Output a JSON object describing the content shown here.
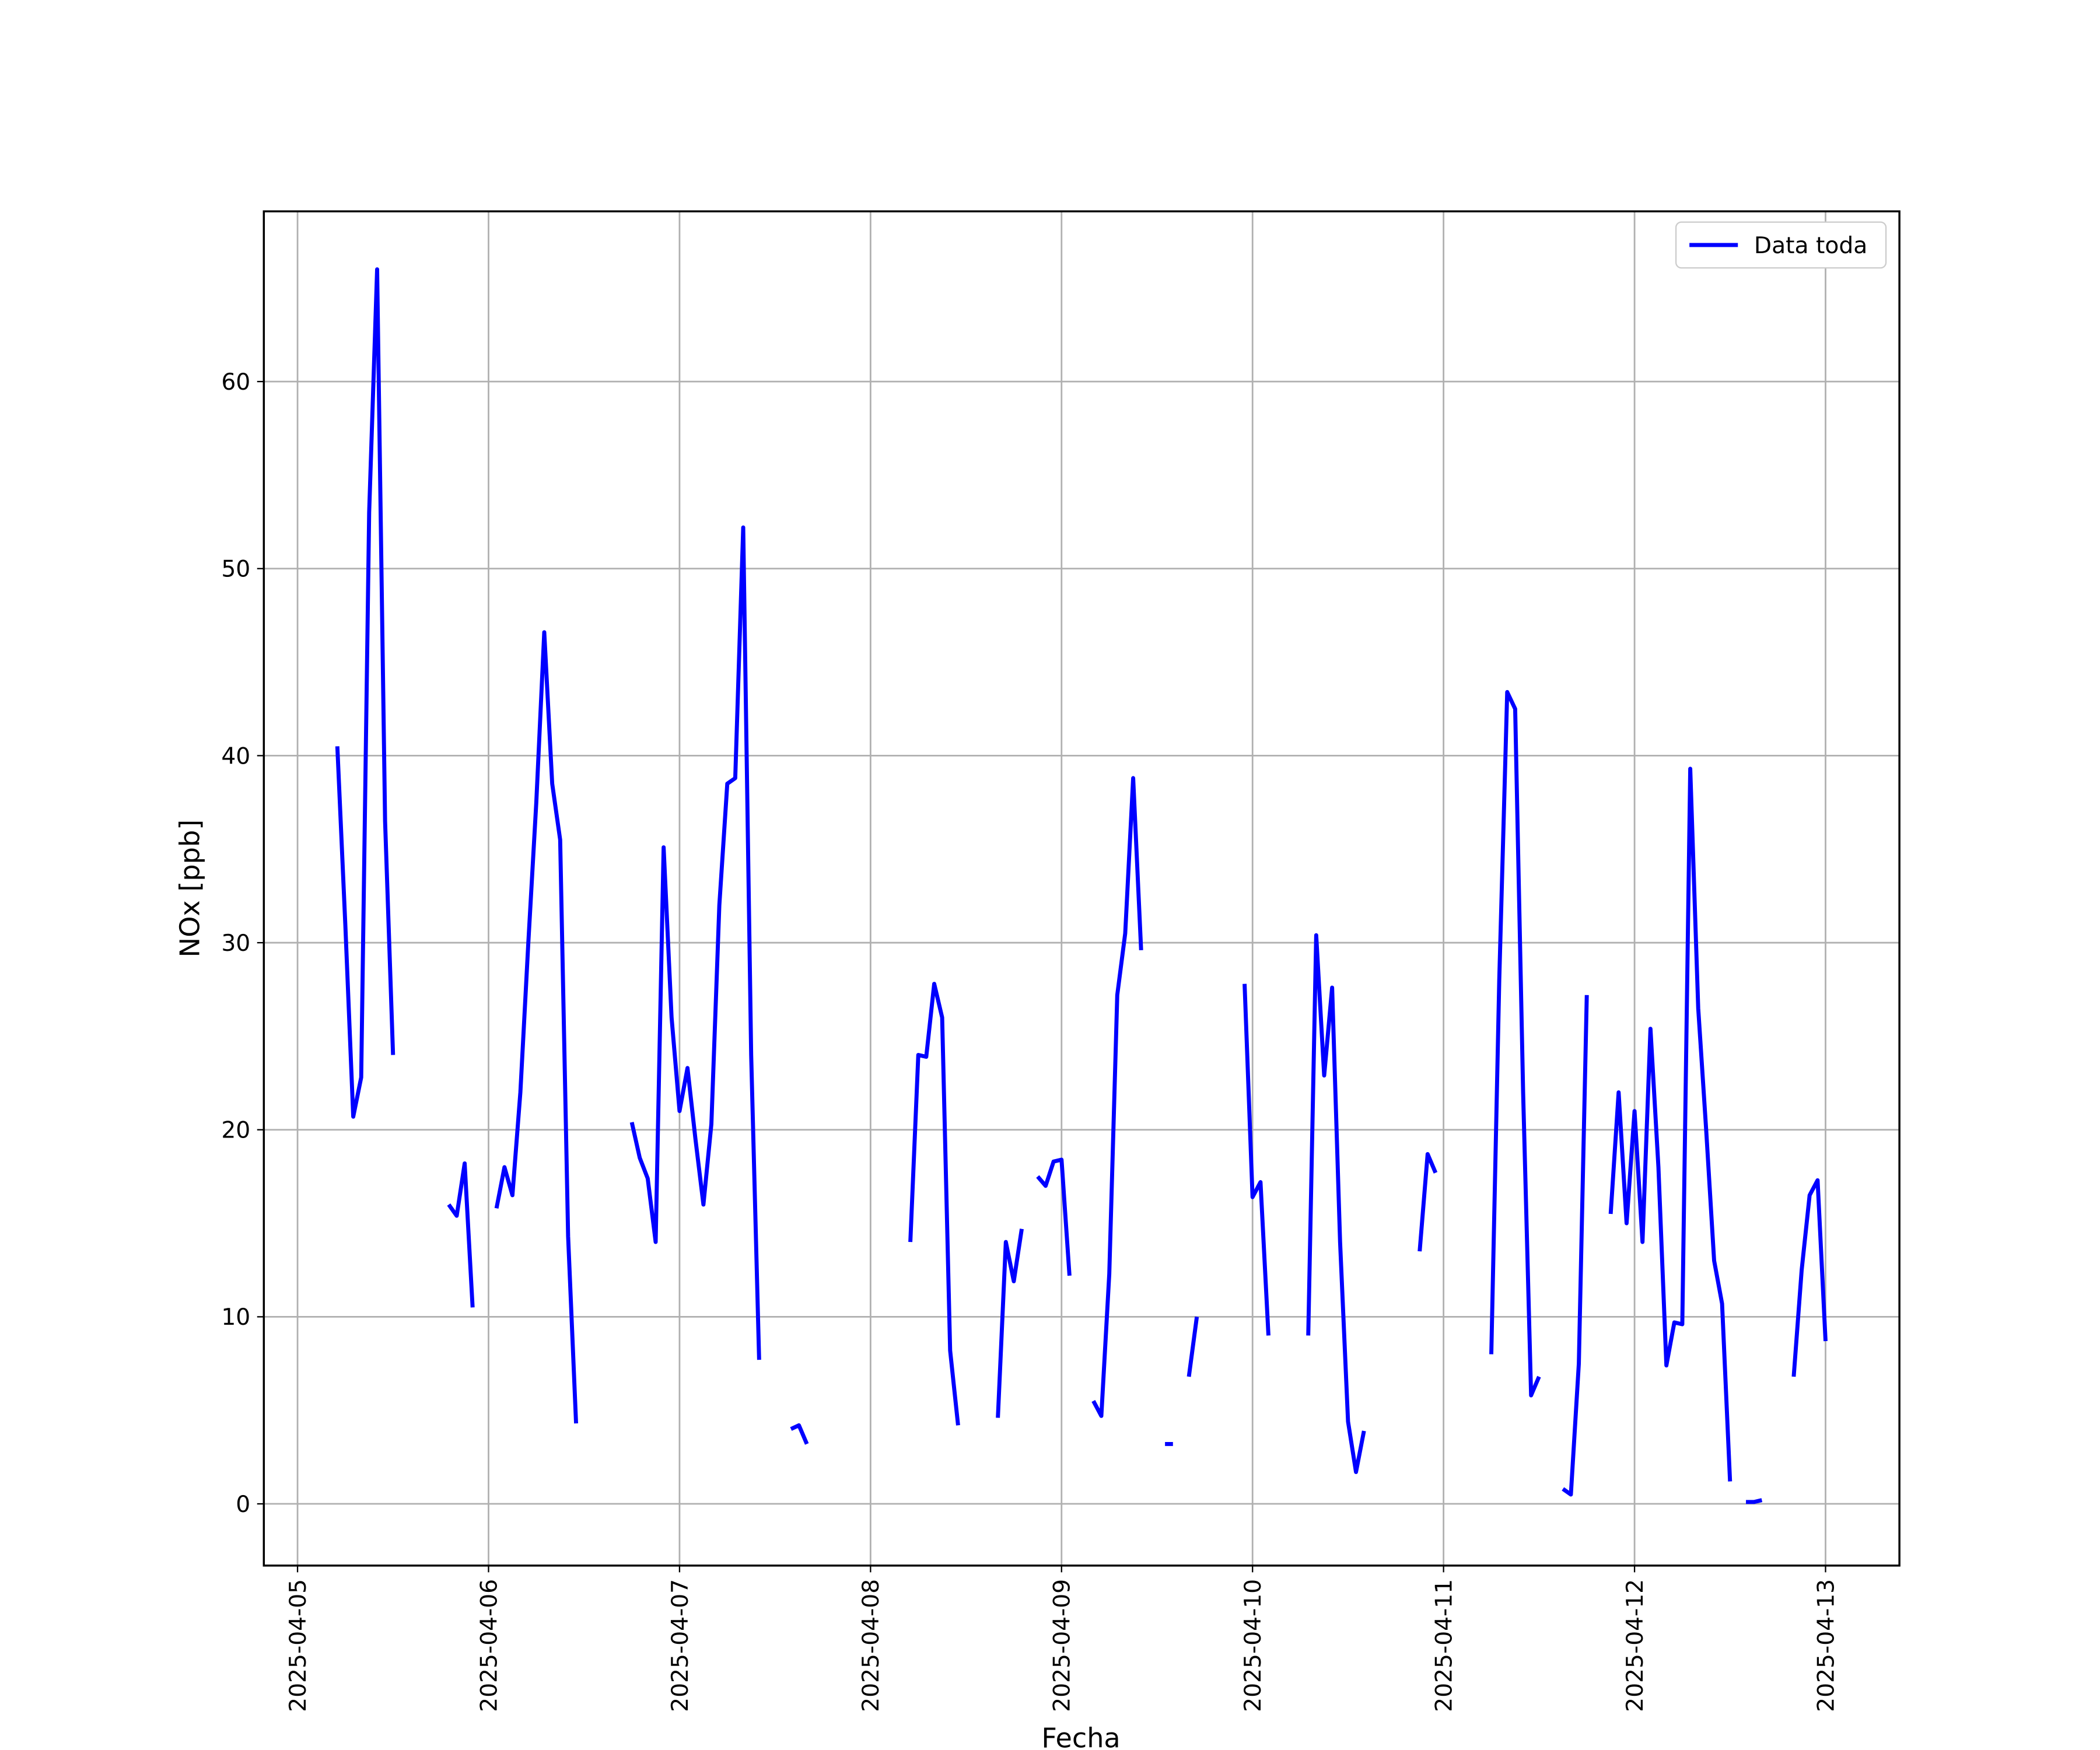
{
  "chart_data": {
    "type": "line",
    "xlabel": "Fecha",
    "ylabel": "NOx [ppb]",
    "x": [
      "2025-04-05 05:00",
      "2025-04-05 06:00",
      "2025-04-05 07:00",
      "2025-04-05 08:00",
      "2025-04-05 09:00",
      "2025-04-05 10:00",
      "2025-04-05 11:00",
      "2025-04-05 12:00",
      "2025-04-05 13:00",
      "2025-04-05 19:00",
      "2025-04-05 20:00",
      "2025-04-05 21:00",
      "2025-04-05 22:00",
      "2025-04-05 23:00",
      "2025-04-06 01:00",
      "2025-04-06 02:00",
      "2025-04-06 03:00",
      "2025-04-06 04:00",
      "2025-04-06 05:00",
      "2025-04-06 06:00",
      "2025-04-06 07:00",
      "2025-04-06 08:00",
      "2025-04-06 09:00",
      "2025-04-06 10:00",
      "2025-04-06 11:00",
      "2025-04-06 12:00",
      "2025-04-06 18:00",
      "2025-04-06 19:00",
      "2025-04-06 20:00",
      "2025-04-06 21:00",
      "2025-04-06 22:00",
      "2025-04-06 23:00",
      "2025-04-07 00:00",
      "2025-04-07 01:00",
      "2025-04-07 02:00",
      "2025-04-07 03:00",
      "2025-04-07 04:00",
      "2025-04-07 05:00",
      "2025-04-07 06:00",
      "2025-04-07 07:00",
      "2025-04-07 08:00",
      "2025-04-07 09:00",
      "2025-04-07 10:00",
      "2025-04-07 11:00",
      "2025-04-07 14:00",
      "2025-04-07 15:00",
      "2025-04-07 16:00",
      "2025-04-07 17:00",
      "2025-04-08 05:00",
      "2025-04-08 06:00",
      "2025-04-08 07:00",
      "2025-04-08 08:00",
      "2025-04-08 09:00",
      "2025-04-08 10:00",
      "2025-04-08 11:00",
      "2025-04-08 12:00",
      "2025-04-08 16:00",
      "2025-04-08 17:00",
      "2025-04-08 18:00",
      "2025-04-08 19:00",
      "2025-04-08 20:00",
      "2025-04-08 21:00",
      "2025-04-08 22:00",
      "2025-04-08 23:00",
      "2025-04-09 00:00",
      "2025-04-09 01:00",
      "2025-04-09 02:00",
      "2025-04-09 04:00",
      "2025-04-09 05:00",
      "2025-04-09 06:00",
      "2025-04-09 07:00",
      "2025-04-09 08:00",
      "2025-04-09 09:00",
      "2025-04-09 10:00",
      "2025-04-09 11:00",
      "2025-04-09 13:00",
      "2025-04-09 14:00",
      "2025-04-09 15:00",
      "2025-04-09 16:00",
      "2025-04-09 17:00",
      "2025-04-09 18:00",
      "2025-04-09 23:00",
      "2025-04-10 00:00",
      "2025-04-10 01:00",
      "2025-04-10 02:00",
      "2025-04-10 03:00",
      "2025-04-10 07:00",
      "2025-04-10 08:00",
      "2025-04-10 09:00",
      "2025-04-10 10:00",
      "2025-04-10 11:00",
      "2025-04-10 12:00",
      "2025-04-10 13:00",
      "2025-04-10 14:00",
      "2025-04-10 15:00",
      "2025-04-10 21:00",
      "2025-04-10 22:00",
      "2025-04-10 23:00",
      "2025-04-11 00:00",
      "2025-04-11 06:00",
      "2025-04-11 07:00",
      "2025-04-11 08:00",
      "2025-04-11 09:00",
      "2025-04-11 10:00",
      "2025-04-11 11:00",
      "2025-04-11 12:00",
      "2025-04-11 13:00",
      "2025-04-11 15:00",
      "2025-04-11 16:00",
      "2025-04-11 17:00",
      "2025-04-11 18:00",
      "2025-04-11 19:00",
      "2025-04-11 21:00",
      "2025-04-11 22:00",
      "2025-04-11 23:00",
      "2025-04-12 00:00",
      "2025-04-12 01:00",
      "2025-04-12 02:00",
      "2025-04-12 03:00",
      "2025-04-12 04:00",
      "2025-04-12 05:00",
      "2025-04-12 06:00",
      "2025-04-12 07:00",
      "2025-04-12 08:00",
      "2025-04-12 09:00",
      "2025-04-12 10:00",
      "2025-04-12 11:00",
      "2025-04-12 12:00",
      "2025-04-12 13:00",
      "2025-04-12 14:00",
      "2025-04-12 15:00",
      "2025-04-12 16:00",
      "2025-04-12 17:00",
      "2025-04-12 20:00",
      "2025-04-12 21:00",
      "2025-04-12 22:00",
      "2025-04-12 23:00",
      "2025-04-13 00:00"
    ],
    "series": [
      {
        "name": "Data toda",
        "color": "#0000ff",
        "values": [
          40.5,
          31,
          20.7,
          22.8,
          53,
          66,
          36.5,
          24,
          null,
          16,
          15.4,
          18.2,
          10.5,
          null,
          15.8,
          18,
          16.5,
          22,
          30,
          37.5,
          46.6,
          38.5,
          35.5,
          14.3,
          4.3,
          null,
          20.4,
          18.5,
          17.4,
          14,
          35.1,
          26,
          21,
          23.3,
          19.5,
          16,
          20.3,
          32,
          38.5,
          38.8,
          52.2,
          24,
          7.7,
          null,
          4,
          4.2,
          3.2,
          null,
          14,
          24,
          23.9,
          27.8,
          26,
          8.2,
          4.2,
          null,
          4.6,
          14,
          11.9,
          14.7,
          null,
          17.5,
          17,
          18.3,
          18.4,
          12.2,
          null,
          5.5,
          4.7,
          12.3,
          27.2,
          30.5,
          38.8,
          29.6,
          null,
          3.2,
          3.2,
          null,
          6.8,
          10,
          null,
          27.8,
          16.4,
          17.2,
          9,
          null,
          9,
          30.4,
          22.9,
          27.6,
          14,
          4.4,
          1.7,
          3.9,
          null,
          13.5,
          18.7,
          17.7,
          null,
          8,
          28,
          43.4,
          42.5,
          22,
          5.8,
          6.8,
          null,
          0.8,
          0.5,
          7.5,
          27.2,
          null,
          15.5,
          22,
          15,
          21,
          14,
          25.4,
          18,
          7.4,
          9.7,
          9.6,
          39.3,
          26.5,
          20,
          13,
          10.7,
          1.2,
          null,
          0.1,
          0.1,
          0.2,
          null,
          6.8,
          12.5,
          16.5,
          17.3,
          8.7
        ]
      }
    ],
    "xlim": [
      "2025-04-04 19:46",
      "2025-04-13 09:17"
    ],
    "xticks": [
      "2025-04-05",
      "2025-04-06",
      "2025-04-07",
      "2025-04-08",
      "2025-04-09",
      "2025-04-10",
      "2025-04-11",
      "2025-04-12",
      "2025-04-13"
    ],
    "ylim": [
      -3.3,
      69.1
    ],
    "yticks": [
      0,
      10,
      20,
      30,
      40,
      50,
      60
    ],
    "grid": true,
    "legend": "upper right"
  }
}
